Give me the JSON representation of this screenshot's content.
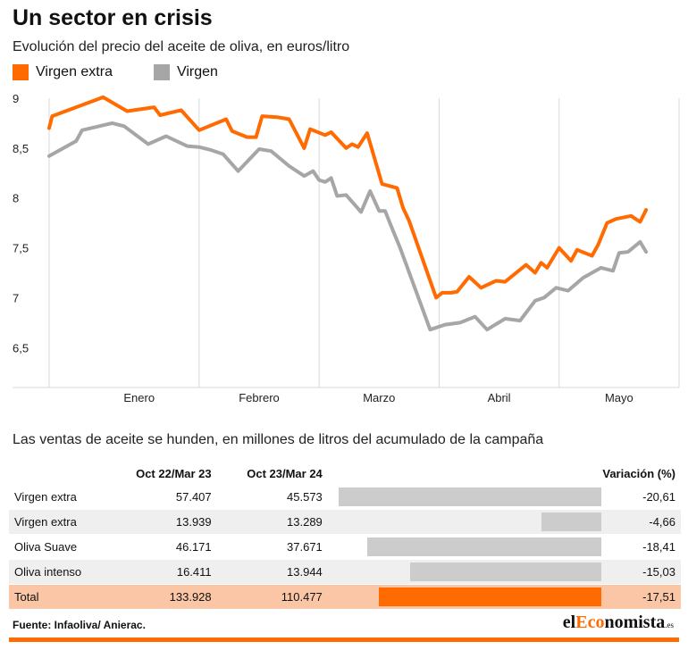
{
  "header": {
    "title": "Un sector en crisis",
    "subtitle": "Evolución del precio del aceite de oliva, en euros/litro"
  },
  "legend": [
    {
      "label": "Virgen extra",
      "color": "#ff6b00"
    },
    {
      "label": "Virgen",
      "color": "#a6a6a6"
    }
  ],
  "chart_data": {
    "type": "line",
    "title": "Evolución del precio del aceite de oliva, en euros/litro",
    "ylim": [
      6.1,
      9
    ],
    "yticks": [
      "9",
      "8,5",
      "8",
      "7,5",
      "7",
      "6,5"
    ],
    "ytick_values": [
      9,
      8.5,
      8,
      7.5,
      7,
      6.5
    ],
    "month_labels": [
      "Enero",
      "Febrero",
      "Marzo",
      "Abril",
      "Mayo"
    ],
    "month_positions": [
      3,
      7,
      11,
      15,
      19
    ],
    "xlim": [
      0,
      21
    ],
    "grid": "vertical",
    "series": [
      {
        "name": "Virgen extra",
        "color": "#ff6b00",
        "x": [
          0,
          0.1,
          1.8,
          2.6,
          3.5,
          3.7,
          4.4,
          5,
          5.9,
          6.1,
          6.6,
          6.9,
          7.1,
          7.6,
          8,
          8.5,
          8.7,
          9.2,
          9.4,
          9.9,
          10.1,
          10.3,
          10.6,
          11.1,
          11.6,
          11.8,
          12,
          12.9,
          13.1,
          13.4,
          13.6,
          14,
          14.4,
          14.9,
          15.2,
          15.9,
          16.2,
          16.4,
          16.6,
          17,
          17.4,
          17.6,
          18.1,
          18.3,
          18.6,
          18.9,
          19.4,
          19.7,
          19.9
        ],
        "y": [
          8.7,
          8.82,
          9.01,
          8.87,
          8.91,
          8.83,
          8.88,
          8.68,
          8.79,
          8.67,
          8.61,
          8.61,
          8.82,
          8.81,
          8.79,
          8.5,
          8.69,
          8.63,
          8.66,
          8.5,
          8.54,
          8.51,
          8.65,
          8.14,
          8.1,
          7.9,
          7.77,
          7.0,
          7.05,
          7.05,
          7.06,
          7.21,
          7.1,
          7.17,
          7.16,
          7.33,
          7.25,
          7.35,
          7.3,
          7.5,
          7.37,
          7.48,
          7.42,
          7.53,
          7.75,
          7.79,
          7.82,
          7.76,
          7.88
        ]
      },
      {
        "name": "Virgen",
        "color": "#a6a6a6",
        "x": [
          0,
          0.9,
          1.1,
          2.1,
          2.5,
          3.3,
          3.9,
          4.6,
          5,
          5.4,
          5.8,
          6.3,
          7,
          7.4,
          8,
          8.5,
          8.8,
          9,
          9.2,
          9.4,
          9.6,
          9.9,
          10.4,
          10.7,
          11,
          11.2,
          11.4,
          11.7,
          12.7,
          13.2,
          13.7,
          14.2,
          14.6,
          15.2,
          15.7,
          16.2,
          16.5,
          16.9,
          17.3,
          17.8,
          18.4,
          18.8,
          19,
          19.3,
          19.7,
          19.9
        ],
        "y": [
          8.42,
          8.57,
          8.68,
          8.75,
          8.72,
          8.54,
          8.62,
          8.52,
          8.51,
          8.48,
          8.44,
          8.27,
          8.49,
          8.47,
          8.32,
          8.22,
          8.27,
          8.18,
          8.16,
          8.2,
          8.02,
          8.03,
          7.86,
          8.07,
          7.87,
          7.87,
          7.72,
          7.5,
          6.68,
          6.73,
          6.75,
          6.81,
          6.68,
          6.79,
          6.77,
          6.97,
          7.0,
          7.1,
          7.07,
          7.2,
          7.3,
          7.27,
          7.45,
          7.46,
          7.56,
          7.46
        ]
      }
    ]
  },
  "sales": {
    "title": "Las ventas de aceite se hunden, en millones de litros del acumulado de la campaña",
    "columns": {
      "name": "",
      "period1": "Oct 22/Mar 23",
      "period2": "Oct 23/Mar 24",
      "variation": "Variación (%)"
    },
    "rows": [
      {
        "name": "Virgen extra",
        "v1": "57.407",
        "v2": "45.573",
        "variation": -20.61,
        "variation_label": "-20,61"
      },
      {
        "name": "Virgen extra",
        "v1": "13.939",
        "v2": "13.289",
        "variation": -4.66,
        "variation_label": "-4,66"
      },
      {
        "name": "Oliva Suave",
        "v1": "46.171",
        "v2": "37.671",
        "variation": -18.41,
        "variation_label": "-18,41"
      },
      {
        "name": "Oliva intenso",
        "v1": "16.411",
        "v2": "13.944",
        "variation": -15.03,
        "variation_label": "-15,03"
      },
      {
        "name": "Total",
        "v1": "133.928",
        "v2": "110.477",
        "variation": -17.51,
        "variation_label": "-17,51"
      }
    ],
    "bar_max_abs": 21.5
  },
  "footer": {
    "source": "Fuente: Infaoliva/ Anierac.",
    "logo_prefix": "el",
    "logo_accent": "Eco",
    "logo_suffix": "nomista",
    "logo_tld": ".es"
  }
}
